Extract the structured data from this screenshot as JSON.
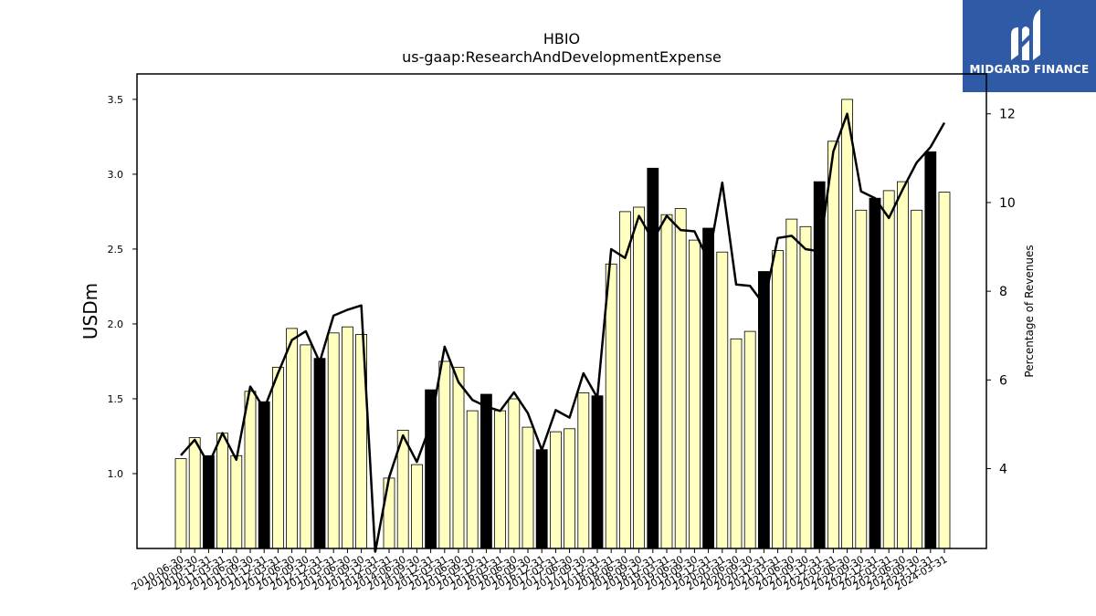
{
  "logo": {
    "text": "MIDGARD FINANCE",
    "icon": "midgard-finance-logo-icon",
    "color": "#2f5aa6"
  },
  "chart_data": {
    "type": "bar",
    "title": "HBIO",
    "subtitle": "us-gaap:ResearchAndDevelopmentExpense",
    "ylabel": "USDm",
    "y2label": "Percentage of Revenues",
    "ylim": [
      0.5,
      3.67
    ],
    "y2lim": [
      2.2,
      12.9
    ],
    "yticks": [
      "1.0",
      "1.5",
      "2.0",
      "2.5",
      "3.0",
      "3.5"
    ],
    "y2ticks": [
      "4",
      "6",
      "8",
      "10",
      "12"
    ],
    "grid": false,
    "colors": {
      "quarter_bar": "#ffffc0",
      "annual_bar": "#000000",
      "line": "#000000"
    },
    "visible_xlabels": [
      "2010-06-30",
      "2010-09-30",
      "2010-12-31",
      "2011-03-31",
      "2011-06-30",
      "2011-09-30",
      "2011-12-31",
      "2012-03-31",
      "2012-06-30",
      "2012-09-30",
      "2012-12-31",
      "2013-03-31",
      "2013-06-30",
      "2013-09-30",
      "2013-12-31",
      "2014-03-31",
      "2014-06-30",
      "2014-09-30",
      "2014-12-31",
      "2015-03-31",
      "2015-06-30",
      "2015-09-30",
      "2015-12-31",
      "2016-03-31",
      "2016-06-30",
      "2016-09-30",
      "2016-12-31",
      "2017-03-31",
      "2017-06-30",
      "2017-09-30",
      "2017-12-31",
      "2018-03-31",
      "2018-06-30",
      "2018-09-30",
      "2018-12-31",
      "2019-03-31",
      "2019-06-30",
      "2019-09-30",
      "2019-12-31",
      "2020-03-31",
      "2020-06-30",
      "2020-09-30",
      "2020-12-31",
      "2021-03-31",
      "2021-06-30",
      "2021-09-30",
      "2021-12-31",
      "2022-03-31",
      "2022-06-30",
      "2022-09-30",
      "2022-12-31",
      "2023-03-31",
      "2023-06-30",
      "2023-09-30",
      "2023-12-31",
      "2024-03-31"
    ],
    "periods": [
      "2010-06-30",
      "2010-09-30",
      "2010-12-31",
      "2011-03-31",
      "2011-06-30",
      "2011-09-30",
      "2011-12-31",
      "2012-03-31",
      "2012-06-30",
      "2012-09-30",
      "2012-12-31",
      "2013-03-31",
      "2013-06-30",
      "2013-09-30",
      "2013-12-31",
      "2014-03-31",
      "2014-06-30",
      "2014-09-30",
      "2014-12-31",
      "2015-03-31",
      "2015-06-30",
      "2015-09-30",
      "2015-12-31",
      "2016-03-31",
      "2016-06-30",
      "2016-09-30",
      "2016-12-31",
      "2017-03-31",
      "2017-06-30",
      "2017-09-30",
      "2017-12-31",
      "2018-03-31",
      "2018-06-30",
      "2018-09-30",
      "2018-12-31",
      "2019-03-31",
      "2019-06-30",
      "2019-09-30",
      "2019-12-31",
      "2020-03-31",
      "2020-06-30",
      "2020-09-30",
      "2020-12-31",
      "2021-03-31",
      "2021-06-30",
      "2021-09-30",
      "2021-12-31",
      "2022-03-31",
      "2022-06-30",
      "2022-09-30",
      "2022-12-31",
      "2023-03-31",
      "2023-06-30",
      "2023-09-30",
      "2023-12-31",
      "2024-03-31"
    ],
    "values": [
      1.1,
      1.24,
      1.12,
      1.27,
      1.12,
      1.55,
      1.48,
      1.71,
      1.97,
      1.86,
      1.77,
      1.94,
      1.98,
      1.93,
      null,
      0.97,
      1.29,
      1.06,
      1.56,
      1.75,
      1.71,
      1.42,
      1.53,
      1.42,
      1.5,
      1.31,
      1.16,
      1.28,
      1.3,
      1.54,
      1.52,
      2.4,
      2.75,
      2.78,
      3.04,
      2.73,
      2.77,
      2.56,
      2.64,
      2.48,
      1.9,
      1.95,
      2.35,
      2.49,
      2.7,
      2.65,
      2.95,
      3.22,
      3.5,
      2.76,
      2.84,
      2.89,
      2.95,
      2.76,
      3.15,
      2.88
    ],
    "annual": [
      false,
      false,
      true,
      false,
      false,
      false,
      true,
      false,
      false,
      false,
      true,
      false,
      false,
      false,
      false,
      false,
      false,
      false,
      true,
      false,
      false,
      false,
      true,
      false,
      false,
      false,
      true,
      false,
      false,
      false,
      true,
      false,
      false,
      false,
      true,
      false,
      false,
      false,
      true,
      false,
      false,
      false,
      true,
      false,
      false,
      false,
      true,
      false,
      false,
      false,
      true,
      false,
      false,
      false,
      true,
      false
    ],
    "series": [
      {
        "name": "Percentage of Revenues",
        "axis": "right",
        "values": [
          4.3,
          4.65,
          4.1,
          4.8,
          4.2,
          5.85,
          5.35,
          6.15,
          6.9,
          7.1,
          6.4,
          7.45,
          7.58,
          7.68,
          null,
          3.8,
          4.75,
          4.15,
          5.0,
          6.75,
          5.95,
          5.55,
          5.4,
          5.3,
          5.72,
          5.25,
          4.42,
          5.32,
          5.15,
          6.15,
          5.6,
          8.95,
          8.75,
          9.7,
          9.15,
          9.7,
          9.38,
          9.35,
          8.7,
          10.45,
          8.15,
          8.12,
          7.7,
          9.2,
          9.25,
          8.95,
          8.9,
          11.15,
          12.0,
          10.25,
          10.1,
          9.65,
          10.3,
          10.9,
          11.25,
          11.8
        ]
      }
    ]
  }
}
